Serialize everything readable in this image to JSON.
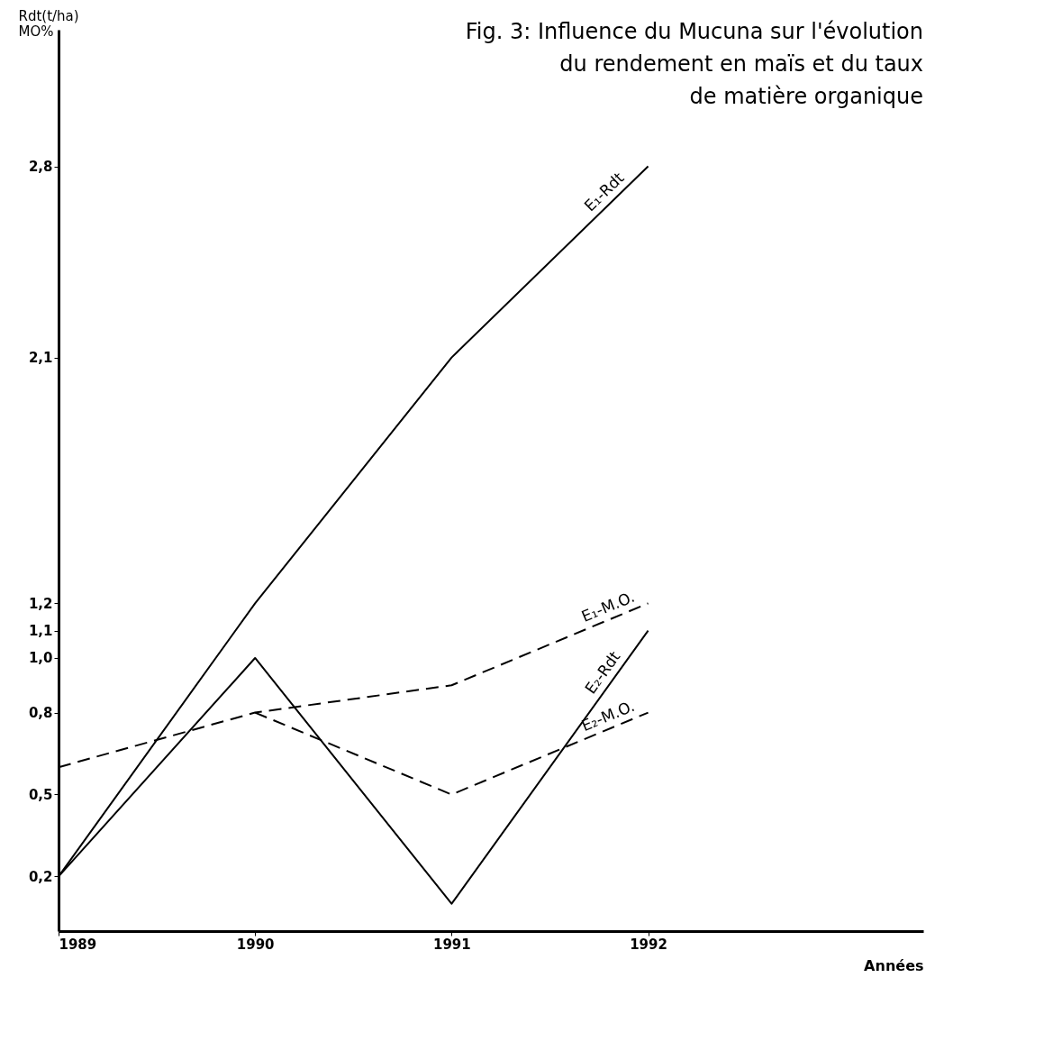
{
  "chart_data": {
    "type": "line",
    "title": "Fig. 3: Influence du Mucuna sur l'évolution\ndu rendement en maïs et du taux\nde matière organique",
    "ylabel": "Rdt(t/ha)\nMO%",
    "xlabel": "Années",
    "x": [
      1989,
      1990,
      1991,
      1992
    ],
    "xlim": [
      1989,
      1993.4
    ],
    "xticks": [
      1989,
      1990,
      1991,
      1992
    ],
    "ylim": [
      0,
      3.3
    ],
    "yticks": [
      {
        "value": 0.2,
        "label": "0,2"
      },
      {
        "value": 0.5,
        "label": "0,5"
      },
      {
        "value": 0.8,
        "label": "0,8"
      },
      {
        "value": 1.0,
        "label": "1,0"
      },
      {
        "value": 1.1,
        "label": "1,1"
      },
      {
        "value": 1.2,
        "label": "1,2"
      },
      {
        "value": 2.1,
        "label": "2,1"
      },
      {
        "value": 2.8,
        "label": "2,8"
      }
    ],
    "grid": false,
    "series": [
      {
        "name": "E₁-Rdt",
        "color": "#000000",
        "line_style": "solid",
        "values": [
          0.2,
          1.2,
          2.1,
          2.8
        ]
      },
      {
        "name": "E₂-Rdt",
        "color": "#000000",
        "line_style": "solid",
        "values": [
          0.2,
          1.0,
          0.1,
          1.1
        ]
      },
      {
        "name": "E₁-M.O.",
        "color": "#000000",
        "line_style": "dashed",
        "values": [
          0.6,
          0.8,
          0.9,
          1.2
        ]
      },
      {
        "name": "E₂-M.O.",
        "color": "#000000",
        "line_style": "dashed",
        "values": [
          null,
          0.8,
          0.5,
          0.8
        ]
      }
    ]
  }
}
